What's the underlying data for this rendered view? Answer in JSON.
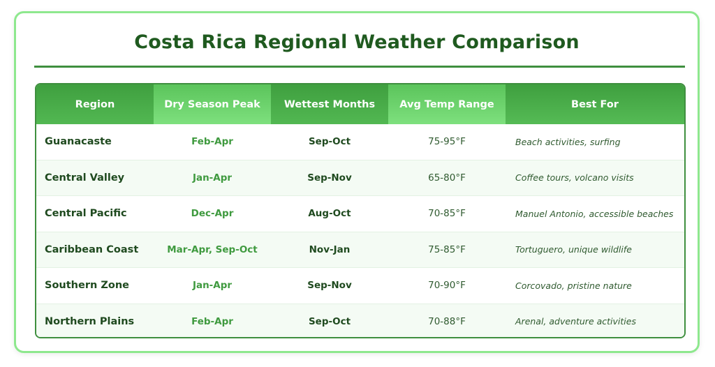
{
  "title": "Costa Rica Regional Weather Comparison",
  "headers": [
    "Region",
    "Dry Season Peak",
    "Wettest Months",
    "Avg Temp Range",
    "Best For"
  ],
  "rows": [
    {
      "region": "Guanacaste",
      "dry": "Feb-Apr",
      "wet": "Sep-Oct",
      "temp": "75-95°F",
      "best": "Beach activities, surfing"
    },
    {
      "region": "Central Valley",
      "dry": "Jan-Apr",
      "wet": "Sep-Nov",
      "temp": "65-80°F",
      "best": "Coffee tours, volcano visits"
    },
    {
      "region": "Central Pacific",
      "dry": "Dec-Apr",
      "wet": "Aug-Oct",
      "temp": "70-85°F",
      "best": "Manuel Antonio, accessible beaches"
    },
    {
      "region": "Caribbean Coast",
      "dry": "Mar-Apr, Sep-Oct",
      "wet": "Nov-Jan",
      "temp": "75-85°F",
      "best": "Tortuguero, unique wildlife"
    },
    {
      "region": "Southern Zone",
      "dry": "Jan-Apr",
      "wet": "Sep-Nov",
      "temp": "70-90°F",
      "best": "Corcovado, pristine nature"
    },
    {
      "region": "Northern Plains",
      "dry": "Feb-Apr",
      "wet": "Sep-Oct",
      "temp": "70-88°F",
      "best": "Arenal, adventure activities"
    }
  ],
  "colors": {
    "title": "#1f5a1f",
    "accent": "#3f9f3f",
    "border": "#8ee88e"
  }
}
